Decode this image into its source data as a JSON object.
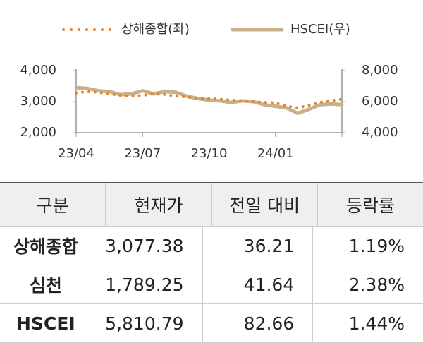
{
  "chart_data": {
    "type": "line",
    "categories": [
      "23/04",
      null,
      null,
      null,
      null,
      null,
      "23/07",
      null,
      null,
      null,
      null,
      null,
      "23/10",
      null,
      null,
      null,
      null,
      null,
      "24/01",
      null,
      null,
      null,
      null,
      null,
      null
    ],
    "series": [
      {
        "name": "상해종합(좌)",
        "color": "#e8822e",
        "style": "dotted",
        "values": [
          3280,
          3320,
          3300,
          3240,
          3200,
          3180,
          3200,
          3250,
          3230,
          3180,
          3150,
          3110,
          3100,
          3080,
          3050,
          3020,
          3000,
          2980,
          2960,
          2860,
          2800,
          2880,
          2980,
          3030,
          3077
        ]
      },
      {
        "name": "HSCEI(우)",
        "color": "#c8b08a",
        "style": "solid",
        "axis": "y2",
        "values": [
          6900,
          6850,
          6700,
          6650,
          6450,
          6500,
          6700,
          6500,
          6650,
          6600,
          6350,
          6200,
          6100,
          6050,
          5950,
          6050,
          6000,
          5800,
          5700,
          5600,
          5250,
          5500,
          5800,
          5850,
          5810
        ]
      }
    ],
    "ylim": [
      2000,
      4000
    ],
    "yticks": [
      {
        "value": 2000,
        "label": "2,000"
      },
      {
        "value": 3000,
        "label": "3,000"
      },
      {
        "value": 4000,
        "label": "4,000"
      }
    ],
    "y2lim": [
      4000,
      8000
    ],
    "y2ticks": [
      {
        "value": 4000,
        "label": "4,000"
      },
      {
        "value": 6000,
        "label": "6,000"
      },
      {
        "value": 8000,
        "label": "8,000"
      }
    ],
    "legend": "top"
  },
  "table": {
    "header": [
      "구분",
      "현재가",
      "전일 대비",
      "등락률"
    ],
    "rows": [
      [
        "상해종합",
        "3,077.38",
        "36.21",
        "1.19%"
      ],
      [
        "심천",
        "1,789.25",
        "41.64",
        "2.38%"
      ],
      [
        "HSCEI",
        "5,810.79",
        "82.66",
        "1.44%"
      ]
    ]
  }
}
